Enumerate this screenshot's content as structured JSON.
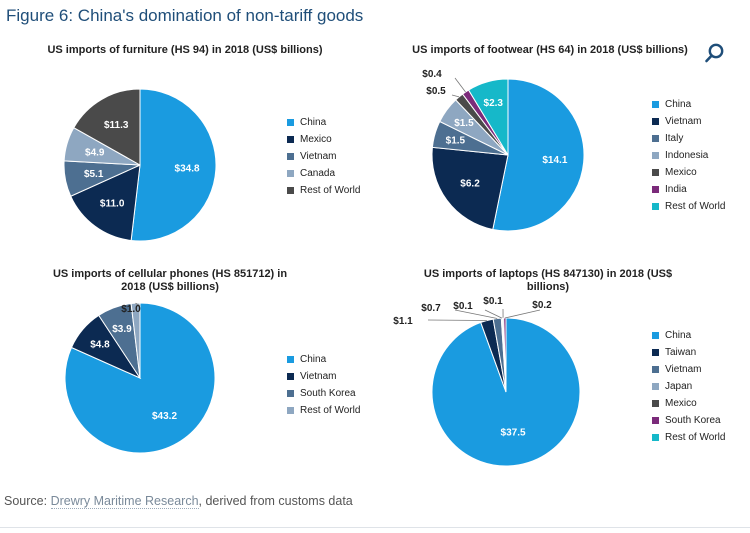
{
  "figure_title": "Figure 6: China's domination of non-tariff goods",
  "search_icon": "search-icon",
  "source": {
    "label": "Source:",
    "link": "Drewry Maritime Research",
    "suffix": ", derived from customs data"
  },
  "colors": {
    "China": "#1a9be0",
    "Mexico": "#0c2a52",
    "Vietnam": "#4d6f91",
    "Canada": "#8ea7c1",
    "Rest of World": "#4a4a4a",
    "Italy": "#4d6f91",
    "Indonesia": "#8ea7c1",
    "India": "#7b2a7a",
    "Rest of World teal": "#16b8c9",
    "South Korea": "#7b2a7a",
    "Taiwan": "#0c2a52",
    "Japan": "#8ea7c1"
  },
  "chart_data": [
    {
      "type": "pie",
      "title": "US imports of furniture (HS 94) in 2018 (US$ billions)",
      "slices": [
        {
          "name": "China",
          "value": 34.8,
          "label": "$34.8",
          "color": "#1a9be0"
        },
        {
          "name": "Mexico",
          "value": 11.0,
          "label": "$11.0",
          "color": "#0c2a52"
        },
        {
          "name": "Vietnam",
          "value": 5.1,
          "label": "$5.1",
          "color": "#4d6f91"
        },
        {
          "name": "Canada",
          "value": 4.9,
          "label": "$4.9",
          "color": "#8ea7c1"
        },
        {
          "name": "Rest of World",
          "value": 11.3,
          "label": "$11.3",
          "color": "#4a4a4a"
        }
      ],
      "legend": [
        "China",
        "Mexico",
        "Vietnam",
        "Canada",
        "Rest of World"
      ]
    },
    {
      "type": "pie",
      "title": "US imports of footwear (HS 64) in 2018 (US$ billions)",
      "slices": [
        {
          "name": "China",
          "value": 14.1,
          "label": "$14.1",
          "color": "#1a9be0"
        },
        {
          "name": "Vietnam",
          "value": 6.2,
          "label": "$6.2",
          "color": "#0c2a52"
        },
        {
          "name": "Italy",
          "value": 1.5,
          "label": "$1.5",
          "color": "#4d6f91"
        },
        {
          "name": "Indonesia",
          "value": 1.5,
          "label": "$1.5",
          "color": "#8ea7c1"
        },
        {
          "name": "Mexico",
          "value": 0.5,
          "label": "$0.5",
          "color": "#4a4a4a"
        },
        {
          "name": "India",
          "value": 0.4,
          "label": "$0.4",
          "color": "#7b2a7a"
        },
        {
          "name": "Rest of World",
          "value": 2.3,
          "label": "$2.3",
          "color": "#16b8c9"
        }
      ],
      "legend": [
        "China",
        "Vietnam",
        "Italy",
        "Indonesia",
        "Mexico",
        "India",
        "Rest of World"
      ]
    },
    {
      "type": "pie",
      "title": "US imports of cellular phones (HS 851712) in 2018 (US$ billions)",
      "slices": [
        {
          "name": "China",
          "value": 43.2,
          "label": "$43.2",
          "color": "#1a9be0"
        },
        {
          "name": "Vietnam",
          "value": 4.8,
          "label": "$4.8",
          "color": "#0c2a52"
        },
        {
          "name": "South Korea",
          "value": 3.9,
          "label": "$3.9",
          "color": "#4d6f91"
        },
        {
          "name": "Rest of World",
          "value": 1.0,
          "label": "$1.0",
          "color": "#8ea7c1"
        }
      ],
      "legend": [
        "China",
        "Vietnam",
        "South Korea",
        "Rest of World"
      ]
    },
    {
      "type": "pie",
      "title": "US imports of laptops (HS 847130) in 2018 (US$ billions)",
      "slices": [
        {
          "name": "China",
          "value": 37.5,
          "label": "$37.5",
          "color": "#1a9be0"
        },
        {
          "name": "Taiwan",
          "value": 1.1,
          "label": "$1.1",
          "color": "#0c2a52"
        },
        {
          "name": "Vietnam",
          "value": 0.7,
          "label": "$0.7",
          "color": "#4d6f91"
        },
        {
          "name": "Japan",
          "value": 0.1,
          "label": "$0.1",
          "color": "#8ea7c1"
        },
        {
          "name": "Mexico",
          "value": 0.1,
          "label": "$0.1",
          "color": "#4a4a4a"
        },
        {
          "name": "South Korea",
          "value": 0.2,
          "label": "$0.2",
          "color": "#7b2a7a"
        },
        {
          "name": "Rest of World",
          "value": 0.0,
          "label": "",
          "color": "#16b8c9"
        }
      ],
      "legend": [
        "China",
        "Taiwan",
        "Vietnam",
        "Japan",
        "Mexico",
        "South Korea",
        "Rest of World"
      ]
    }
  ]
}
